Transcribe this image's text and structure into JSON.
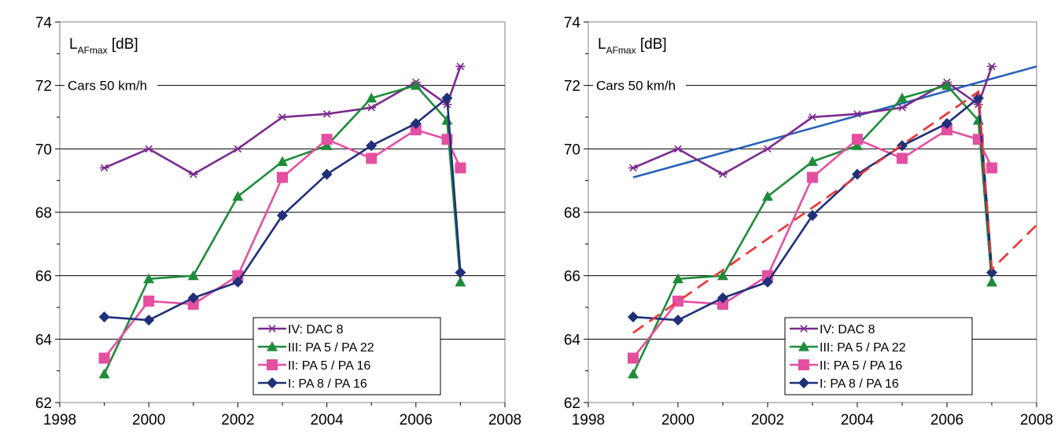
{
  "chart_data": [
    {
      "type": "line",
      "ylabel_main": "L",
      "ylabel_sub": "AFmax",
      "ylabel_unit": " [dB]",
      "annotation": "Cars 50 km/h",
      "xlim": [
        1998,
        2008
      ],
      "ylim": [
        62,
        74
      ],
      "xticks": [
        "1998",
        "2000",
        "2002",
        "2004",
        "2006",
        "2008"
      ],
      "yticks": [
        "62",
        "64",
        "66",
        "68",
        "70",
        "72",
        "74"
      ],
      "grid": "horizontal",
      "legend_position": "bottom-right",
      "series": [
        {
          "name": "IV:  DAC 8",
          "color": "#7B2A8E",
          "marker": "star",
          "x": [
            1999,
            2000,
            2001,
            2002,
            2003,
            2004,
            2005,
            2006,
            2006.7,
            2007
          ],
          "y": [
            69.4,
            70.0,
            69.2,
            70.0,
            71.0,
            71.1,
            71.3,
            72.1,
            71.4,
            72.6
          ]
        },
        {
          "name": "III:   PA 5 / PA 22",
          "color": "#1E8C3A",
          "marker": "triangle",
          "x": [
            1999,
            2000,
            2001,
            2002,
            2003,
            2004,
            2005,
            2006,
            2006.7,
            2007
          ],
          "y": [
            62.9,
            65.9,
            66.0,
            68.5,
            69.6,
            70.1,
            71.6,
            72.0,
            70.9,
            65.8
          ]
        },
        {
          "name": "II:    PA 5 / PA 16",
          "color": "#E44FA0",
          "marker": "square",
          "x": [
            1999,
            2000,
            2001,
            2002,
            2003,
            2004,
            2005,
            2006,
            2006.7,
            2007
          ],
          "y": [
            63.4,
            65.2,
            65.1,
            66.0,
            69.1,
            70.3,
            69.7,
            70.6,
            70.3,
            69.4
          ]
        },
        {
          "name": "I:      PA 8 / PA 16",
          "color": "#1F2F7A",
          "marker": "diamond",
          "x": [
            1999,
            2000,
            2001,
            2002,
            2003,
            2004,
            2005,
            2006,
            2006.7,
            2007
          ],
          "y": [
            64.7,
            64.6,
            65.3,
            65.8,
            67.9,
            69.2,
            70.1,
            70.8,
            71.6,
            66.1
          ]
        }
      ]
    },
    {
      "type": "line",
      "ylabel_main": "L",
      "ylabel_sub": "AFmax",
      "ylabel_unit": " [dB]",
      "annotation": "Cars 50 km/h",
      "xlim": [
        1998,
        2008
      ],
      "ylim": [
        62,
        74
      ],
      "xticks": [
        "1998",
        "2000",
        "2002",
        "2004",
        "2006",
        "2008"
      ],
      "yticks": [
        "62",
        "64",
        "66",
        "68",
        "70",
        "72",
        "74"
      ],
      "grid": "horizontal",
      "legend_position": "bottom-right",
      "series": [
        {
          "name": "IV:  DAC 8",
          "color": "#7B2A8E",
          "marker": "star",
          "x": [
            1999,
            2000,
            2001,
            2002,
            2003,
            2004,
            2005,
            2006,
            2006.7,
            2007
          ],
          "y": [
            69.4,
            70.0,
            69.2,
            70.0,
            71.0,
            71.1,
            71.3,
            72.1,
            71.4,
            72.6
          ]
        },
        {
          "name": "III:   PA 5 / PA 22",
          "color": "#1E8C3A",
          "marker": "triangle",
          "x": [
            1999,
            2000,
            2001,
            2002,
            2003,
            2004,
            2005,
            2006,
            2006.7,
            2007
          ],
          "y": [
            62.9,
            65.9,
            66.0,
            68.5,
            69.6,
            70.1,
            71.6,
            72.0,
            70.9,
            65.8
          ]
        },
        {
          "name": "II:    PA 5 / PA 16",
          "color": "#E44FA0",
          "marker": "square",
          "x": [
            1999,
            2000,
            2001,
            2002,
            2003,
            2004,
            2005,
            2006,
            2006.7,
            2007
          ],
          "y": [
            63.4,
            65.2,
            65.1,
            66.0,
            69.1,
            70.3,
            69.7,
            70.6,
            70.3,
            69.4
          ]
        },
        {
          "name": "I:      PA 8 / PA 16",
          "color": "#1F2F7A",
          "marker": "diamond",
          "x": [
            1999,
            2000,
            2001,
            2002,
            2003,
            2004,
            2005,
            2006,
            2006.7,
            2007
          ],
          "y": [
            64.7,
            64.6,
            65.3,
            65.8,
            67.9,
            69.2,
            70.1,
            70.8,
            71.6,
            66.1
          ]
        }
      ],
      "trend_lines": [
        {
          "color": "#2A62B8",
          "style": "solid",
          "x": [
            1999,
            2008
          ],
          "y": [
            69.1,
            72.6
          ]
        },
        {
          "color": "#E83B3B",
          "style": "dashed",
          "x": [
            1999,
            2006.7,
            2007,
            2008
          ],
          "y": [
            64.2,
            71.8,
            66.2,
            67.6
          ]
        },
        {
          "color": "#1F2F7A",
          "style": "solid",
          "x": [
            2006.7,
            2007
          ],
          "y": [
            71.8,
            66.2
          ]
        }
      ]
    }
  ]
}
